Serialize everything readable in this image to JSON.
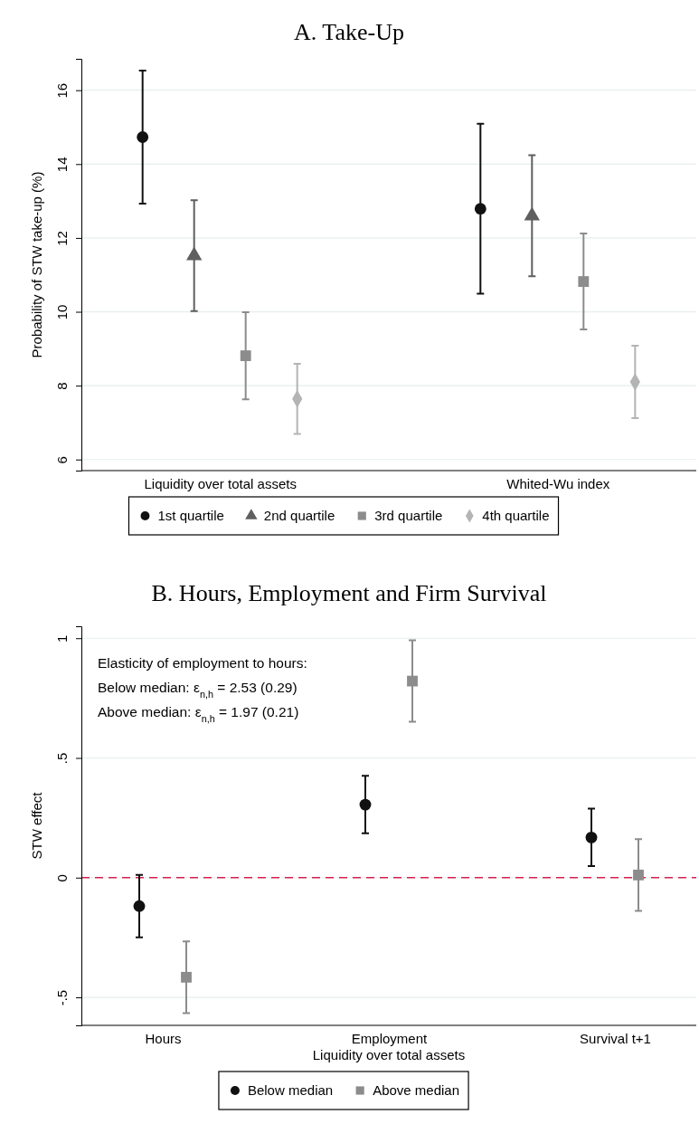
{
  "chart_data": [
    {
      "type": "scatter",
      "title": "A. Take-Up",
      "ylabel": "Probability of STW take-up (%)",
      "categories": [
        "Liquidity over total assets",
        "Whited-Wu index"
      ],
      "ylim": [
        5.7,
        16.85
      ],
      "yticks": [
        6,
        8,
        10,
        12,
        14,
        16
      ],
      "grid": "y",
      "legend": "bottom",
      "series": [
        {
          "name": "1st quartile",
          "color": "#111111",
          "marker": "circle",
          "values": [
            14.73,
            12.79
          ],
          "errors": [
            1.8,
            2.3
          ]
        },
        {
          "name": "2nd quartile",
          "color": "#5f5f5f",
          "marker": "triangle",
          "values": [
            11.52,
            12.6
          ],
          "errors": [
            1.5,
            1.64
          ]
        },
        {
          "name": "3rd quartile",
          "color": "#8c8c8c",
          "marker": "square",
          "values": [
            8.81,
            10.82
          ],
          "errors": [
            1.18,
            1.3
          ]
        },
        {
          "name": "4th quartile",
          "color": "#b4b4b4",
          "marker": "diamond",
          "values": [
            7.64,
            8.1
          ],
          "errors": [
            0.95,
            0.98
          ]
        }
      ]
    },
    {
      "type": "scatter",
      "title": "B. Hours, Employment and Firm Survival",
      "ylabel": "STW effect",
      "xlabel": "Liquidity over total assets",
      "categories": [
        "Hours",
        "Employment",
        "Survival t+1"
      ],
      "ylim": [
        -0.617,
        1.05
      ],
      "yticks": [
        {
          "value": -0.5,
          "label": "-.5"
        },
        0,
        {
          "value": 0.5,
          "label": ".5"
        },
        1
      ],
      "grid": "y",
      "legend": "bottom",
      "ref_lines": [
        {
          "axis": "y",
          "value": 0,
          "color": "#d6204e",
          "line_style": "dashed"
        }
      ],
      "annotations": [
        "Elasticity of employment to hours:",
        "Below median: ε$_{n,h}$ = 2.53 (0.29)",
        "Above median: ε$_{n,h}$ = 1.97 (0.21)"
      ],
      "series": [
        {
          "name": "Below median",
          "color": "#111111",
          "marker": "circle",
          "values": [
            -0.119,
            0.305,
            0.168
          ],
          "errors": [
            0.13,
            0.12,
            0.12
          ]
        },
        {
          "name": "Above median",
          "color": "#8c8c8c",
          "marker": "square",
          "values": [
            -0.416,
            0.821,
            0.011
          ],
          "errors": [
            0.15,
            0.17,
            0.15
          ]
        }
      ]
    }
  ]
}
